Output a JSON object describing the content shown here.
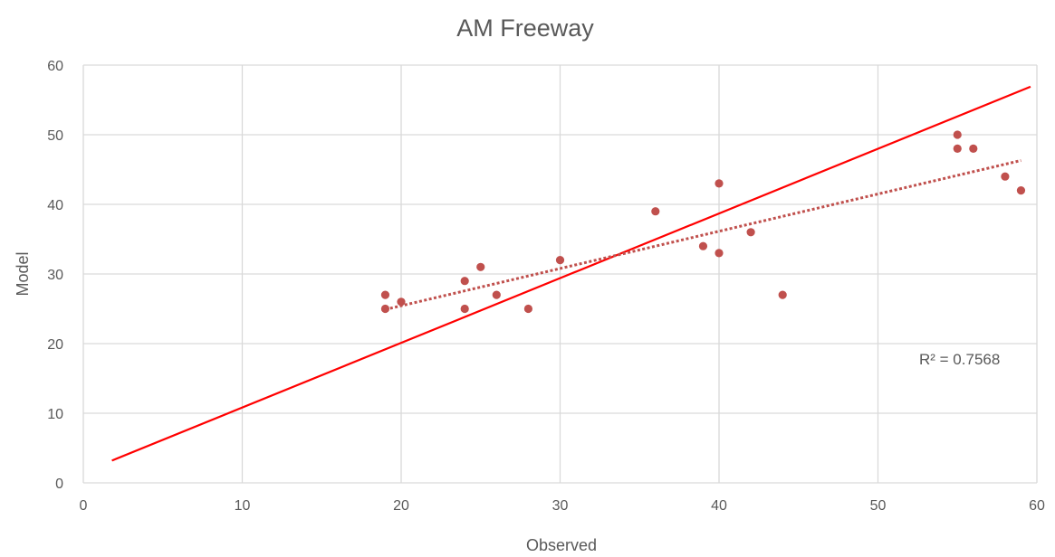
{
  "chart_data": {
    "type": "scatter",
    "title": "AM Freeway",
    "xlabel": "Observed",
    "ylabel": "Model",
    "xlim": [
      0,
      60
    ],
    "ylim": [
      0,
      60
    ],
    "xticks": [
      0,
      10,
      20,
      30,
      40,
      50,
      60
    ],
    "yticks": [
      0,
      10,
      20,
      30,
      40,
      50,
      60
    ],
    "grid": true,
    "legend": "none",
    "series": [
      {
        "points": [
          {
            "x": 19,
            "y": 27
          },
          {
            "x": 19,
            "y": 25
          },
          {
            "x": 20,
            "y": 26
          },
          {
            "x": 24,
            "y": 29
          },
          {
            "x": 24,
            "y": 25
          },
          {
            "x": 25,
            "y": 31
          },
          {
            "x": 26,
            "y": 27
          },
          {
            "x": 28,
            "y": 25
          },
          {
            "x": 30,
            "y": 32
          },
          {
            "x": 36,
            "y": 39
          },
          {
            "x": 39,
            "y": 34
          },
          {
            "x": 40,
            "y": 43
          },
          {
            "x": 40,
            "y": 33
          },
          {
            "x": 42,
            "y": 36
          },
          {
            "x": 44,
            "y": 27
          },
          {
            "x": 55,
            "y": 50
          },
          {
            "x": 55,
            "y": 48
          },
          {
            "x": 56,
            "y": 48
          },
          {
            "x": 58,
            "y": 44
          },
          {
            "x": 59,
            "y": 42
          }
        ],
        "color": "#c0504d"
      }
    ],
    "trendline": {
      "type": "linear",
      "style": "dotted",
      "color": "#c0504d",
      "start": {
        "x": 19,
        "y": 24.9
      },
      "end": {
        "x": 59,
        "y": 46.3
      },
      "r2_label": "R² = 0.7568"
    },
    "reference_line": {
      "color": "#ff0000",
      "start": {
        "x": 1.8,
        "y": 3.2
      },
      "end": {
        "x": 59.6,
        "y": 56.9
      }
    }
  }
}
